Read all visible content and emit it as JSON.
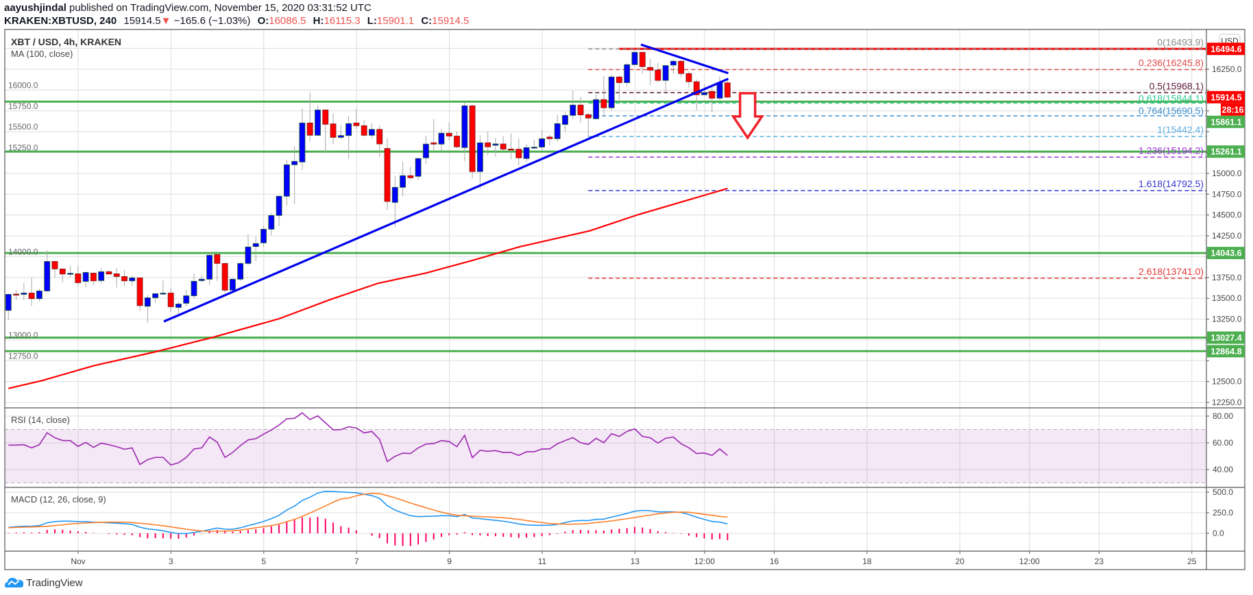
{
  "header": {
    "author": "aayushjindal",
    "published": "published on TradingView.com, November 15, 2020 03:31:52 UTC",
    "symbol": "KRAKEN:XBTUSD, 240",
    "last": "15914.5",
    "change": "−165.6 (−1.03%)",
    "o_label": "O:",
    "o": "16086.5",
    "h_label": "H:",
    "h": "16115.3",
    "l_label": "L:",
    "l": "15901.1",
    "c_label": "C:",
    "c": "15914.5"
  },
  "legend": {
    "title": "XBT / USD, 4h, KRAKEN",
    "ma": "MA (100, close)",
    "rsi": "RSI (14, close)",
    "macd": "MACD (12, 26, close, 9)"
  },
  "price_axis": {
    "currency": "USD",
    "ticks": [
      "16250.0",
      "16000.0",
      "15750.0",
      "15500.0",
      "15250.0",
      "15000.0",
      "14750.0",
      "14500.0",
      "14250.0",
      "14000.0",
      "13750.0",
      "13500.0",
      "13250.0",
      "13000.0",
      "12750.0",
      "12500.0",
      "12250.0"
    ],
    "tags": [
      {
        "label": "16494.6",
        "value": 16494.6,
        "color": "#ff0000"
      },
      {
        "label": "15914.5",
        "value": 15914.5,
        "color": "#ff0000",
        "countdown": "28:16"
      },
      {
        "label": "15861.1",
        "value": 15861.1,
        "color": "#4caf50"
      },
      {
        "label": "15261.1",
        "value": 15261.1,
        "color": "#4caf50"
      },
      {
        "label": "14043.6",
        "value": 14043.6,
        "color": "#4caf50"
      },
      {
        "label": "13027.4",
        "value": 13027.4,
        "color": "#4caf50"
      },
      {
        "label": "12864.8",
        "value": 12864.8,
        "color": "#4caf50"
      }
    ]
  },
  "rsi_axis": [
    {
      "label": "80.00",
      "value": 80
    },
    {
      "label": "60.00",
      "value": 60
    },
    {
      "label": "40.00",
      "value": 40
    }
  ],
  "macd_axis": [
    {
      "label": "500.0",
      "value": 500
    },
    {
      "label": "250.0",
      "value": 250
    },
    {
      "label": "0.0",
      "value": 0
    }
  ],
  "time_axis": {
    "ticks": [
      {
        "label": "Nov",
        "day": 1
      },
      {
        "label": "3",
        "day": 3
      },
      {
        "label": "5",
        "day": 5
      },
      {
        "label": "7",
        "day": 7
      },
      {
        "label": "9",
        "day": 9
      },
      {
        "label": "11",
        "day": 11
      },
      {
        "label": "13",
        "day": 13
      },
      {
        "label": "12:00",
        "day": 14.5
      },
      {
        "label": "16",
        "day": 16
      },
      {
        "label": "18",
        "day": 18
      },
      {
        "label": "20",
        "day": 20
      },
      {
        "label": "12:00",
        "day": 21.5
      },
      {
        "label": "23",
        "day": 23
      },
      {
        "label": "25",
        "day": 25
      }
    ]
  },
  "footer": {
    "brand": "TradingView"
  },
  "chart_data": {
    "type": "candlestick",
    "title": "XBT / USD, 4h, KRAKEN",
    "first_candle": "Oct 30 12:00",
    "interval_hours": 4,
    "ylim": [
      12150,
      16650
    ],
    "colors": {
      "up": "#0000ff",
      "down": "#ff0000",
      "ma": "#ff0000",
      "trend": "#0000ee",
      "rsi": "#9c27b0",
      "macd": "#2196f3",
      "signal": "#ff7f27",
      "hist": "#ff0066",
      "support": "#4caf50",
      "resistance": "#ff0000"
    },
    "ohlc": [
      [
        13354,
        13560,
        13240,
        13547
      ],
      [
        13550,
        13591,
        13478,
        13545
      ],
      [
        13547,
        13684,
        13478,
        13563
      ],
      [
        13563,
        13745,
        13409,
        13495
      ],
      [
        13495,
        13610,
        13464,
        13588
      ],
      [
        13588,
        14077,
        13577,
        13942
      ],
      [
        13942,
        13950,
        13747,
        13852
      ],
      [
        13852,
        13860,
        13692,
        13791
      ],
      [
        13797,
        13893,
        13761,
        13800
      ],
      [
        13794,
        13893,
        13643,
        13687
      ],
      [
        13703,
        13821,
        13635,
        13810
      ],
      [
        13802,
        13810,
        13659,
        13709
      ],
      [
        13712,
        13863,
        13684,
        13819
      ],
      [
        13819,
        13838,
        13785,
        13791
      ],
      [
        13794,
        13863,
        13629,
        13761
      ],
      [
        13761,
        13838,
        13651,
        13709
      ],
      [
        13709,
        13772,
        13651,
        13745
      ],
      [
        13745,
        13750,
        13349,
        13412
      ],
      [
        13404,
        13541,
        13206,
        13506
      ],
      [
        13506,
        13560,
        13445,
        13555
      ],
      [
        13560,
        13714,
        13555,
        13562
      ],
      [
        13563,
        13629,
        13335,
        13398
      ],
      [
        13390,
        13459,
        13316,
        13431
      ],
      [
        13440,
        13602,
        13404,
        13530
      ],
      [
        13530,
        13795,
        13500,
        13704
      ],
      [
        13712,
        13775,
        13693,
        13729
      ],
      [
        13729,
        14058,
        13657,
        14017
      ],
      [
        14025,
        14036,
        13707,
        13918
      ],
      [
        13918,
        13926,
        13570,
        13597
      ],
      [
        13597,
        13740,
        13583,
        13729
      ],
      [
        13729,
        13935,
        13707,
        13918
      ],
      [
        13918,
        14266,
        13899,
        14116
      ],
      [
        14121,
        14242,
        13948,
        14157
      ],
      [
        14165,
        14371,
        14118,
        14329
      ],
      [
        14329,
        14521,
        14255,
        14494
      ],
      [
        14494,
        14735,
        14365,
        14725
      ],
      [
        14725,
        15161,
        14612,
        15103
      ],
      [
        15103,
        15325,
        14631,
        15144
      ],
      [
        15136,
        15778,
        15043,
        15605
      ],
      [
        15605,
        15970,
        15380,
        15457
      ],
      [
        15457,
        15813,
        15450,
        15761
      ],
      [
        15761,
        15770,
        15251,
        15589
      ],
      [
        15594,
        15723,
        15347,
        15432
      ],
      [
        15432,
        15580,
        15413,
        15454
      ],
      [
        15454,
        15690,
        15174,
        15597
      ],
      [
        15605,
        15772,
        15531,
        15572
      ],
      [
        15572,
        15641,
        15443,
        15457
      ],
      [
        15457,
        15600,
        15421,
        15528
      ],
      [
        15528,
        15572,
        15194,
        15353
      ],
      [
        15299,
        15422,
        14558,
        14662
      ],
      [
        14651,
        14969,
        14360,
        14832
      ],
      [
        14832,
        15139,
        14723,
        14972
      ],
      [
        14972,
        15079,
        14920,
        14947
      ],
      [
        14964,
        15189,
        14920,
        15178
      ],
      [
        15186,
        15452,
        15117,
        15351
      ],
      [
        15367,
        15650,
        15277,
        15351
      ],
      [
        15351,
        15532,
        15271,
        15482
      ],
      [
        15482,
        15608,
        15397,
        15447
      ],
      [
        15447,
        15504,
        15299,
        15318
      ],
      [
        15309,
        15847,
        15142,
        15811
      ],
      [
        15811,
        15820,
        14942,
        15021
      ],
      [
        15021,
        15458,
        14819,
        15367
      ],
      [
        15367,
        15504,
        15216,
        15318
      ],
      [
        15337,
        15427,
        15200,
        15353
      ],
      [
        15353,
        15444,
        15271,
        15290
      ],
      [
        15292,
        15477,
        15167,
        15290
      ],
      [
        15290,
        15419,
        15093,
        15186
      ],
      [
        15178,
        15353,
        15134,
        15309
      ],
      [
        15305,
        15403,
        15293,
        15315
      ],
      [
        15315,
        15526,
        15282,
        15416
      ],
      [
        15436,
        15463,
        15340,
        15416
      ],
      [
        15416,
        15702,
        15381,
        15597
      ],
      [
        15587,
        15737,
        15496,
        15696
      ],
      [
        15696,
        15993,
        15655,
        15820
      ],
      [
        15820,
        15921,
        15609,
        15702
      ],
      [
        15705,
        15724,
        15436,
        15664
      ],
      [
        15655,
        15943,
        15650,
        15886
      ],
      [
        15886,
        16168,
        15683,
        15787
      ],
      [
        15787,
        16185,
        15757,
        16157
      ],
      [
        16157,
        16176,
        15883,
        16089
      ],
      [
        16089,
        16322,
        16048,
        16305
      ],
      [
        16305,
        16494,
        16294,
        16453
      ],
      [
        16453,
        16460,
        16196,
        16281
      ],
      [
        16272,
        16374,
        16061,
        16239
      ],
      [
        16239,
        16327,
        16094,
        16116
      ],
      [
        16116,
        16305,
        15979,
        16294
      ],
      [
        16300,
        16368,
        16196,
        16346
      ],
      [
        16346,
        16355,
        16154,
        16198
      ],
      [
        16198,
        16223,
        16031,
        16100
      ],
      [
        16100,
        16127,
        15757,
        15943
      ],
      [
        15943,
        16067,
        15940,
        15970
      ],
      [
        15984,
        16039,
        15737,
        15902
      ],
      [
        15902,
        16163,
        15875,
        16086
      ],
      [
        16086.5,
        16115.3,
        15901.1,
        15914.5
      ]
    ],
    "ma100": [
      [
        1,
        12417
      ],
      [
        5.4,
        12513
      ],
      [
        12.1,
        12692
      ],
      [
        20,
        12857
      ],
      [
        27.4,
        13030
      ],
      [
        36,
        13254
      ],
      [
        42.7,
        13487
      ],
      [
        48.8,
        13680
      ],
      [
        55,
        13803
      ],
      [
        61,
        13954
      ],
      [
        67.1,
        14118
      ],
      [
        76.2,
        14310
      ],
      [
        82.4,
        14503
      ],
      [
        94,
        14818
      ]
    ],
    "horizontal_levels": [
      {
        "value": 16494.6,
        "color": "#ff0000",
        "from_candle": 80
      },
      {
        "value": 15861.1,
        "color": "#4caf50",
        "from_candle": 0
      },
      {
        "value": 15261.1,
        "color": "#4caf50",
        "from_candle": 0
      },
      {
        "value": 14043.6,
        "color": "#4caf50",
        "from_candle": 0
      },
      {
        "value": 13027.4,
        "color": "#4caf50",
        "from_candle": 0
      },
      {
        "value": 12864.8,
        "color": "#4caf50",
        "from_candle": 0
      }
    ],
    "fib_levels": [
      {
        "label": "0(16493.9)",
        "value": 16493.9,
        "color": "#8a8a8a"
      },
      {
        "label": "0.236(16245.8)",
        "value": 16245.8,
        "color": "#e04848"
      },
      {
        "label": "0.5(15968.1)",
        "value": 15968.1,
        "color": "#5a1a3a"
      },
      {
        "label": "0.618(15844.1)",
        "value": 15844.1,
        "color": "#2ecc8f"
      },
      {
        "label": "0.764(15690.5)",
        "value": 15690.5,
        "color": "#3a8fd0"
      },
      {
        "label": "1(15442.4)",
        "value": 15442.4,
        "color": "#5aaee0"
      },
      {
        "label": "1.236(15194.2)",
        "value": 15194.2,
        "color": "#9c34d6"
      },
      {
        "label": "1.618(14792.5)",
        "value": 14792.5,
        "color": "#3535d0"
      },
      {
        "label": "2.618(13741.0)",
        "value": 13741.0,
        "color": "#e53935"
      }
    ],
    "fib_from_candle": 76,
    "trendlines": [
      {
        "name": "ascending-support",
        "from": [
          21.1,
          13221
        ],
        "to": [
          94.1,
          16135
        ]
      },
      {
        "name": "descending-resistance",
        "from": [
          82.8,
          16546
        ],
        "to": [
          94.1,
          16203
        ]
      }
    ],
    "arrow": {
      "candle": 96.6,
      "top": 15962,
      "tip": 15428,
      "color": "#f0202a"
    },
    "rsi": [
      58.3,
      58.3,
      58.6,
      56.2,
      58.6,
      67.5,
      63.8,
      61.7,
      61.7,
      57.3,
      60.3,
      56.6,
      59.7,
      58.6,
      57.1,
      55.2,
      56.2,
      43.8,
      47.4,
      49.1,
      49.1,
      43.4,
      45.1,
      49.1,
      55.4,
      56.2,
      64.4,
      60.5,
      49.1,
      52.8,
      57.9,
      62.2,
      63.1,
      66.5,
      69.6,
      73.3,
      78,
      78.3,
      82.4,
      77.4,
      80.2,
      75,
      69.7,
      69.9,
      72,
      71.1,
      67.4,
      68.5,
      62.6,
      46,
      49.9,
      52.3,
      52,
      56.2,
      59.1,
      59.4,
      61.7,
      61,
      57.1,
      65.6,
      48.9,
      54.4,
      53.7,
      54.2,
      52.8,
      52.8,
      50.6,
      53.3,
      53.3,
      55.4,
      55.4,
      59.3,
      61.7,
      63.9,
      60.1,
      58.8,
      63.4,
      60.1,
      66.8,
      64.8,
      68.5,
      70.4,
      64.8,
      63.8,
      59.8,
      63.4,
      64.3,
      59.3,
      56.3,
      52,
      52.4,
      50.6,
      55.4,
      50.6
    ],
    "rsi_band": [
      30,
      70
    ],
    "macd": {
      "macd": [
        72,
        81,
        86,
        86,
        94,
        128,
        142,
        147,
        147,
        142,
        142,
        136,
        133,
        128,
        122,
        117,
        108,
        75,
        53,
        44,
        31,
        11,
        -3,
        -3,
        11,
        25,
        44,
        64,
        50,
        50,
        67,
        94,
        117,
        144,
        178,
        219,
        283,
        331,
        400,
        439,
        489,
        511,
        508,
        503,
        497,
        492,
        475,
        458,
        425,
        336,
        283,
        247,
        214,
        203,
        206,
        208,
        214,
        214,
        203,
        228,
        186,
        178,
        167,
        158,
        147,
        133,
        114,
        103,
        97,
        97,
        97,
        108,
        131,
        150,
        156,
        156,
        169,
        172,
        197,
        219,
        242,
        269,
        278,
        275,
        261,
        261,
        261,
        253,
        228,
        197,
        169,
        144,
        136,
        114
      ],
      "signal": [
        67,
        72,
        75,
        78,
        81,
        86,
        94,
        103,
        114,
        119,
        125,
        131,
        133,
        136,
        136,
        136,
        131,
        122,
        114,
        103,
        92,
        78,
        64,
        50,
        39,
        28,
        25,
        25,
        28,
        31,
        39,
        53,
        67,
        81,
        94,
        114,
        142,
        169,
        206,
        247,
        289,
        333,
        378,
        417,
        428,
        456,
        475,
        486,
        483,
        458,
        431,
        400,
        369,
        339,
        311,
        283,
        258,
        236,
        219,
        214,
        208,
        203,
        200,
        194,
        189,
        181,
        169,
        156,
        142,
        131,
        119,
        114,
        111,
        111,
        114,
        119,
        131,
        139,
        150,
        164,
        178,
        192,
        208,
        222,
        236,
        247,
        256,
        258,
        256,
        244,
        231,
        219,
        206,
        197
      ]
    }
  }
}
